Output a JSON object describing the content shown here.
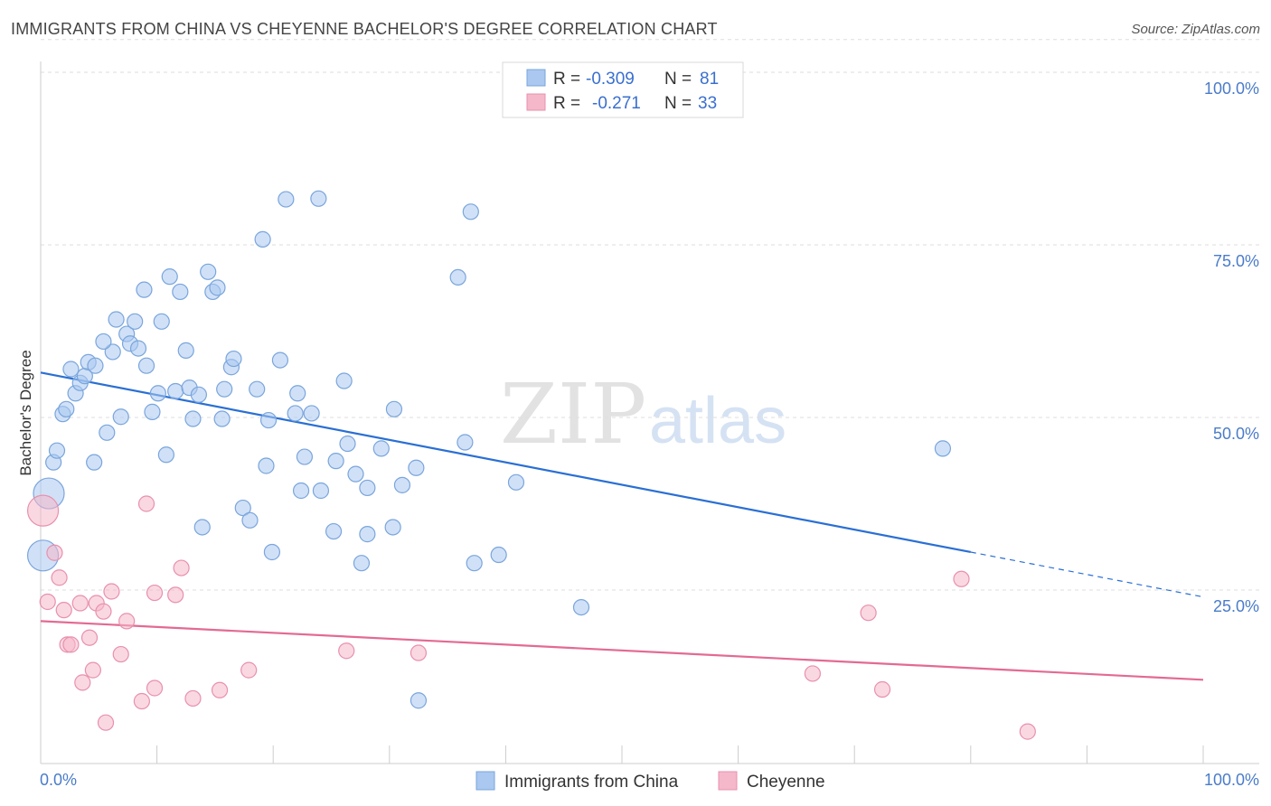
{
  "title": "IMMIGRANTS FROM CHINA VS CHEYENNE BACHELOR'S DEGREE CORRELATION CHART",
  "source": "Source: ZipAtlas.com",
  "watermark": {
    "part1": "ZIP",
    "part2": "atlas"
  },
  "legend": {
    "rows": [
      {
        "r_label": "R = ",
        "r_value": "-0.309",
        "n_label": "N = ",
        "n_value": "81",
        "color": "#aac8f0"
      },
      {
        "r_label": "R = ",
        "r_value": "-0.271",
        "n_label": "N = ",
        "n_value": "33",
        "color": "#f5b8cb"
      }
    ]
  },
  "chart_data": {
    "type": "scatter",
    "title": "IMMIGRANTS FROM CHINA VS CHEYENNE BACHELOR'S DEGREE CORRELATION CHART",
    "xlabel": "",
    "ylabel": "Bachelor's Degree",
    "xlim": [
      0,
      100
    ],
    "ylim": [
      0,
      105
    ],
    "x_tick_labels": [
      "0.0%",
      "100.0%"
    ],
    "y_ticks": [
      25,
      50,
      75,
      100
    ],
    "y_tick_labels": [
      "25.0%",
      "50.0%",
      "75.0%",
      "100.0%"
    ],
    "grid": true,
    "legend_position": "top-center",
    "series": [
      {
        "name": "Immigrants from China",
        "color": "#aac8f0",
        "stroke": "#7aa5dc",
        "line_color": "#2a6fd4",
        "trend": {
          "x": [
            0,
            80
          ],
          "y": [
            56.5,
            30.5
          ],
          "dashed_to": [
            100,
            24
          ]
        },
        "points": [
          [
            0.2,
            30,
            1
          ],
          [
            0.7,
            39,
            1
          ],
          [
            1.1,
            43.5,
            0
          ],
          [
            1.4,
            45.2,
            0
          ],
          [
            1.9,
            50.5,
            0
          ],
          [
            2.2,
            51.2,
            0
          ],
          [
            2.6,
            57,
            0
          ],
          [
            3.0,
            53.5,
            0
          ],
          [
            3.4,
            55,
            0
          ],
          [
            3.8,
            56,
            0
          ],
          [
            4.1,
            58,
            0
          ],
          [
            4.7,
            57.5,
            0
          ],
          [
            4.6,
            43.5,
            0
          ],
          [
            5.7,
            47.8,
            0
          ],
          [
            6.2,
            59.5,
            0
          ],
          [
            5.4,
            61,
            0
          ],
          [
            6.5,
            64.2,
            0
          ],
          [
            6.9,
            50.1,
            0
          ],
          [
            7.4,
            62.1,
            0
          ],
          [
            7.7,
            60.7,
            0
          ],
          [
            8.1,
            63.9,
            0
          ],
          [
            8.4,
            60,
            0
          ],
          [
            8.9,
            68.5,
            0
          ],
          [
            9.1,
            57.5,
            0
          ],
          [
            9.6,
            50.8,
            0
          ],
          [
            10.1,
            53.5,
            0
          ],
          [
            10.4,
            63.9,
            0
          ],
          [
            10.8,
            44.6,
            0
          ],
          [
            11.1,
            70.4,
            0
          ],
          [
            11.6,
            53.8,
            0
          ],
          [
            12.0,
            68.2,
            0
          ],
          [
            12.5,
            59.7,
            0
          ],
          [
            12.8,
            54.3,
            0
          ],
          [
            13.1,
            49.8,
            0
          ],
          [
            13.6,
            53.3,
            0
          ],
          [
            13.9,
            34.1,
            0
          ],
          [
            14.4,
            71.1,
            0
          ],
          [
            14.8,
            68.2,
            0
          ],
          [
            15.2,
            68.8,
            0
          ],
          [
            15.6,
            49.8,
            0
          ],
          [
            15.8,
            54.1,
            0
          ],
          [
            16.4,
            57.3,
            0
          ],
          [
            16.6,
            58.5,
            0
          ],
          [
            17.4,
            36.9,
            0
          ],
          [
            18.0,
            35.1,
            0
          ],
          [
            18.6,
            54.1,
            0
          ],
          [
            19.1,
            75.8,
            0
          ],
          [
            19.4,
            43,
            0
          ],
          [
            19.6,
            49.6,
            0
          ],
          [
            19.9,
            30.5,
            0
          ],
          [
            20.6,
            58.3,
            0
          ],
          [
            21.1,
            81.6,
            0
          ],
          [
            21.9,
            50.6,
            0
          ],
          [
            22.1,
            53.5,
            0
          ],
          [
            22.4,
            39.4,
            0
          ],
          [
            22.7,
            44.3,
            0
          ],
          [
            23.3,
            50.6,
            0
          ],
          [
            23.9,
            81.7,
            0
          ],
          [
            24.1,
            39.4,
            0
          ],
          [
            25.2,
            33.5,
            0
          ],
          [
            25.4,
            43.7,
            0
          ],
          [
            26.1,
            55.3,
            0
          ],
          [
            26.4,
            46.2,
            0
          ],
          [
            27.1,
            41.8,
            0
          ],
          [
            27.6,
            28.9,
            0
          ],
          [
            28.1,
            33.1,
            0
          ],
          [
            28.1,
            39.8,
            0
          ],
          [
            29.3,
            45.5,
            0
          ],
          [
            30.3,
            34.1,
            0
          ],
          [
            30.4,
            51.2,
            0
          ],
          [
            31.1,
            40.2,
            0
          ],
          [
            32.3,
            42.7,
            0
          ],
          [
            32.5,
            9,
            0
          ],
          [
            35.9,
            70.3,
            0
          ],
          [
            36.5,
            46.4,
            0
          ],
          [
            37.0,
            79.8,
            0
          ],
          [
            37.3,
            28.9,
            0
          ],
          [
            39.4,
            30.1,
            0
          ],
          [
            40.9,
            40.6,
            0
          ],
          [
            46.5,
            22.5,
            0
          ],
          [
            77.6,
            45.5,
            0
          ]
        ]
      },
      {
        "name": "Cheyenne",
        "color": "#f5b8cb",
        "stroke": "#e890ad",
        "line_color": "#e36a93",
        "trend": {
          "x": [
            0,
            100
          ],
          "y": [
            20.5,
            12
          ]
        },
        "points": [
          [
            0.2,
            36.5,
            1
          ],
          [
            0.6,
            23.3,
            0
          ],
          [
            1.2,
            30.4,
            0
          ],
          [
            1.6,
            26.8,
            0
          ],
          [
            2.0,
            22.1,
            0
          ],
          [
            2.3,
            17.1,
            0
          ],
          [
            2.6,
            17.1,
            0
          ],
          [
            3.4,
            23.1,
            0
          ],
          [
            3.6,
            11.6,
            0
          ],
          [
            4.2,
            18.1,
            0
          ],
          [
            4.5,
            13.4,
            0
          ],
          [
            4.8,
            23.1,
            0
          ],
          [
            5.4,
            21.9,
            0
          ],
          [
            5.6,
            5.8,
            0
          ],
          [
            6.1,
            24.8,
            0
          ],
          [
            6.9,
            15.7,
            0
          ],
          [
            7.4,
            20.5,
            0
          ],
          [
            8.7,
            8.9,
            0
          ],
          [
            9.1,
            37.5,
            0
          ],
          [
            9.8,
            24.6,
            0
          ],
          [
            9.8,
            10.8,
            0
          ],
          [
            11.6,
            24.3,
            0
          ],
          [
            12.1,
            28.2,
            0
          ],
          [
            13.1,
            9.3,
            0
          ],
          [
            15.4,
            10.5,
            0
          ],
          [
            17.9,
            13.4,
            0
          ],
          [
            26.3,
            16.2,
            0
          ],
          [
            32.5,
            15.9,
            0
          ],
          [
            66.4,
            12.9,
            0
          ],
          [
            71.2,
            21.7,
            0
          ],
          [
            72.4,
            10.6,
            0
          ],
          [
            79.2,
            26.6,
            0
          ],
          [
            84.9,
            4.5,
            0
          ]
        ]
      }
    ]
  },
  "bottom_legend": [
    {
      "label": "Immigrants from China",
      "color": "#aac8f0"
    },
    {
      "label": "Cheyenne",
      "color": "#f5b8cb"
    }
  ]
}
